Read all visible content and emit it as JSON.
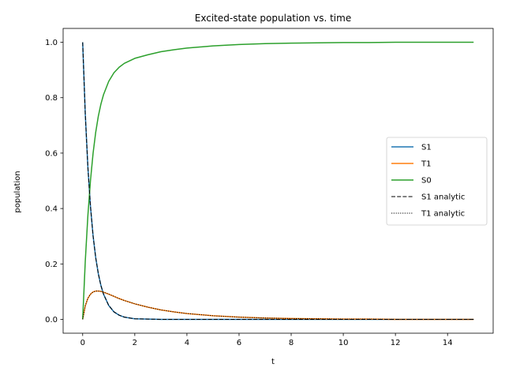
{
  "chart_data": {
    "type": "line",
    "title": "Excited-state population vs. time",
    "xlabel": "t",
    "ylabel": "population",
    "xlim": [
      -0.75,
      15.75
    ],
    "ylim": [
      -0.05,
      1.05
    ],
    "xticks": [
      0,
      2,
      4,
      6,
      8,
      10,
      12,
      14
    ],
    "yticks": [
      0.0,
      0.2,
      0.4,
      0.6,
      0.8,
      1.0
    ],
    "xtick_labels": [
      "0",
      "2",
      "4",
      "6",
      "8",
      "10",
      "12",
      "14"
    ],
    "ytick_labels": [
      "0.0",
      "0.2",
      "0.4",
      "0.6",
      "0.8",
      "1.0"
    ],
    "grid": false,
    "legend_position": "center-right",
    "x": [
      0,
      0.1,
      0.2,
      0.3,
      0.4,
      0.5,
      0.6,
      0.7,
      0.8,
      1.0,
      1.2,
      1.4,
      1.6,
      1.8,
      2.0,
      2.5,
      3.0,
      3.5,
      4.0,
      5.0,
      6.0,
      7.0,
      8.0,
      9.0,
      10.0,
      11.0,
      12.0,
      13.0,
      14.0,
      15.0
    ],
    "series": [
      {
        "name": "S1",
        "color": "#1f77b4",
        "style": "solid",
        "values": [
          1.0,
          0.741,
          0.549,
          0.407,
          0.301,
          0.223,
          0.165,
          0.122,
          0.091,
          0.05,
          0.027,
          0.015,
          0.008,
          0.005,
          0.002,
          0.001,
          0.0,
          0.0,
          0.0,
          0.0,
          0.0,
          0.0,
          0.0,
          0.0,
          0.0,
          0.0,
          0.0,
          0.0,
          0.0,
          0.0
        ]
      },
      {
        "name": "T1",
        "color": "#ff7f0e",
        "style": "solid",
        "values": [
          0.0,
          0.049,
          0.076,
          0.091,
          0.099,
          0.102,
          0.102,
          0.101,
          0.098,
          0.091,
          0.083,
          0.075,
          0.068,
          0.062,
          0.056,
          0.044,
          0.034,
          0.027,
          0.021,
          0.013,
          0.008,
          0.005,
          0.003,
          0.002,
          0.001,
          0.001,
          0.0,
          0.0,
          0.0,
          0.0
        ]
      },
      {
        "name": "S0",
        "color": "#2ca02c",
        "style": "solid",
        "values": [
          0.0,
          0.21,
          0.375,
          0.502,
          0.6,
          0.675,
          0.733,
          0.777,
          0.811,
          0.859,
          0.89,
          0.91,
          0.924,
          0.933,
          0.942,
          0.955,
          0.966,
          0.973,
          0.979,
          0.987,
          0.992,
          0.995,
          0.997,
          0.998,
          0.999,
          0.999,
          1.0,
          1.0,
          1.0,
          1.0
        ]
      },
      {
        "name": "S1 analytic",
        "color": "#000000",
        "style": "dashed",
        "values": [
          1.0,
          0.741,
          0.549,
          0.407,
          0.301,
          0.223,
          0.165,
          0.122,
          0.091,
          0.05,
          0.027,
          0.015,
          0.008,
          0.005,
          0.002,
          0.001,
          0.0,
          0.0,
          0.0,
          0.0,
          0.0,
          0.0,
          0.0,
          0.0,
          0.0,
          0.0,
          0.0,
          0.0,
          0.0,
          0.0
        ]
      },
      {
        "name": "T1 analytic",
        "color": "#000000",
        "style": "dotted",
        "values": [
          0.0,
          0.049,
          0.076,
          0.091,
          0.099,
          0.102,
          0.102,
          0.101,
          0.098,
          0.091,
          0.083,
          0.075,
          0.068,
          0.062,
          0.056,
          0.044,
          0.034,
          0.027,
          0.021,
          0.013,
          0.008,
          0.005,
          0.003,
          0.002,
          0.001,
          0.001,
          0.0,
          0.0,
          0.0,
          0.0
        ]
      }
    ]
  }
}
